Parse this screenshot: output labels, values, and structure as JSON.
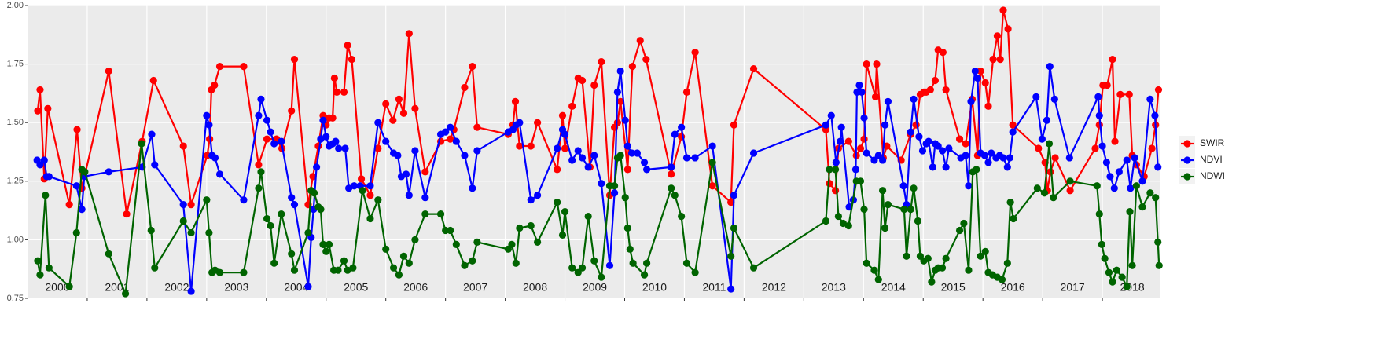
{
  "chart_data": {
    "type": "line",
    "xlim": [
      2000,
      2018.96
    ],
    "xticks": [
      2001,
      2002,
      2003,
      2004,
      2005,
      2006,
      2007,
      2008,
      2009,
      2010,
      2011,
      2012,
      2013,
      2014,
      2015,
      2016,
      2017,
      2018
    ],
    "ylim": [
      0.75,
      2.0
    ],
    "yticks": [
      {
        "value": 0.75,
        "label": "0.75"
      },
      {
        "value": 1.0,
        "label": "1.00"
      },
      {
        "value": 1.25,
        "label": "1.25"
      },
      {
        "value": 1.5,
        "label": "1.50"
      },
      {
        "value": 1.75,
        "label": "1.75"
      },
      {
        "value": 2.0,
        "label": "2.00"
      }
    ],
    "grid": true,
    "legend": "right",
    "year_labels": [
      {
        "text": "2000",
        "x": 2000.5
      },
      {
        "text": "2001",
        "x": 2001.5
      },
      {
        "text": "2002",
        "x": 2002.5
      },
      {
        "text": "2003",
        "x": 2003.5
      },
      {
        "text": "2004",
        "x": 2004.5
      },
      {
        "text": "2005",
        "x": 2005.5
      },
      {
        "text": "2006",
        "x": 2006.5
      },
      {
        "text": "2007",
        "x": 2007.5
      },
      {
        "text": "2008",
        "x": 2008.5
      },
      {
        "text": "2009",
        "x": 2009.5
      },
      {
        "text": "2010",
        "x": 2010.5
      },
      {
        "text": "2011",
        "x": 2011.5
      },
      {
        "text": "2012",
        "x": 2012.5
      },
      {
        "text": "2013",
        "x": 2013.5
      },
      {
        "text": "2014",
        "x": 2014.5
      },
      {
        "text": "2015",
        "x": 2015.5
      },
      {
        "text": "2016",
        "x": 2016.5
      },
      {
        "text": "2017",
        "x": 2017.5
      },
      {
        "text": "2018",
        "x": 2018.5
      }
    ],
    "series": [
      {
        "name": "SWIR",
        "color": "#ff0000",
        "x": [
          2000.17,
          2000.21,
          2000.28,
          2000.34,
          2000.7,
          2000.83,
          2000.91,
          2001.36,
          2001.66,
          2001.92,
          2002.11,
          2002.61,
          2002.74,
          2003.01,
          2003.05,
          2003.08,
          2003.13,
          2003.22,
          2003.62,
          2003.87,
          2004.01,
          2004.17,
          2004.26,
          2004.42,
          2004.47,
          2004.7,
          2004.78,
          2004.87,
          2004.95,
          2005.0,
          2005.05,
          2005.11,
          2005.14,
          2005.18,
          2005.3,
          2005.36,
          2005.43,
          2005.59,
          2005.74,
          2005.87,
          2006.0,
          2006.12,
          2006.22,
          2006.3,
          2006.39,
          2006.49,
          2006.66,
          2006.92,
          2007.08,
          2007.14,
          2007.32,
          2007.45,
          2007.53,
          2008.05,
          2008.13,
          2008.17,
          2008.24,
          2008.43,
          2008.54,
          2008.87,
          2008.96,
          2009.0,
          2009.12,
          2009.22,
          2009.29,
          2009.42,
          2009.49,
          2009.61,
          2009.75,
          2009.83,
          2009.88,
          2009.93,
          2010.05,
          2010.13,
          2010.26,
          2010.36,
          2010.78,
          2010.95,
          2011.04,
          2011.18,
          2011.47,
          2011.78,
          2011.83,
          2012.16,
          2013.37,
          2013.43,
          2013.53,
          2013.58,
          2013.75,
          2013.88,
          2013.95,
          2014.01,
          2014.05,
          2014.2,
          2014.22,
          2014.33,
          2014.39,
          2014.63,
          2014.79,
          2014.88,
          2014.95,
          2015.01,
          2015.05,
          2015.12,
          2015.2,
          2015.25,
          2015.33,
          2015.38,
          2015.61,
          2015.71,
          2015.82,
          2015.91,
          2015.96,
          2016.04,
          2016.09,
          2016.17,
          2016.24,
          2016.29,
          2016.34,
          2016.42,
          2016.5,
          2016.93,
          2017.04,
          2017.08,
          2017.13,
          2017.21,
          2017.46,
          2017.88,
          2017.95,
          2018.01,
          2018.08,
          2018.17,
          2018.21,
          2018.3,
          2018.45,
          2018.5,
          2018.57,
          2018.7,
          2018.83,
          2018.89,
          2018.94
        ],
        "values": [
          1.55,
          1.64,
          1.26,
          1.56,
          1.15,
          1.47,
          1.22,
          1.72,
          1.11,
          1.42,
          1.68,
          1.4,
          1.15,
          1.36,
          1.43,
          1.64,
          1.66,
          1.74,
          1.74,
          1.32,
          1.43,
          1.43,
          1.39,
          1.55,
          1.77,
          1.15,
          1.27,
          1.4,
          1.53,
          1.49,
          1.52,
          1.52,
          1.69,
          1.63,
          1.63,
          1.83,
          1.77,
          1.26,
          1.19,
          1.39,
          1.58,
          1.51,
          1.6,
          1.54,
          1.88,
          1.56,
          1.29,
          1.42,
          1.43,
          1.47,
          1.65,
          1.74,
          1.48,
          1.45,
          1.49,
          1.59,
          1.4,
          1.4,
          1.5,
          1.3,
          1.53,
          1.39,
          1.57,
          1.69,
          1.68,
          1.31,
          1.66,
          1.76,
          1.19,
          1.48,
          1.5,
          1.59,
          1.3,
          1.74,
          1.85,
          1.77,
          1.28,
          1.44,
          1.63,
          1.8,
          1.23,
          1.16,
          1.49,
          1.73,
          1.47,
          1.24,
          1.21,
          1.39,
          1.42,
          1.36,
          1.39,
          1.43,
          1.75,
          1.61,
          1.75,
          1.35,
          1.4,
          1.34,
          1.45,
          1.49,
          1.62,
          1.63,
          1.63,
          1.64,
          1.68,
          1.81,
          1.8,
          1.64,
          1.43,
          1.41,
          1.6,
          1.36,
          1.72,
          1.67,
          1.57,
          1.77,
          1.87,
          1.77,
          1.98,
          1.9,
          1.49,
          1.39,
          1.33,
          1.21,
          1.29,
          1.35,
          1.21,
          1.39,
          1.49,
          1.66,
          1.66,
          1.77,
          1.42,
          1.62,
          1.62,
          1.36,
          1.32,
          1.27,
          1.39,
          1.49,
          1.64
        ]
      },
      {
        "name": "NDVI",
        "color": "#0000ff",
        "x": [
          2000.16,
          2000.21,
          2000.28,
          2000.32,
          2000.36,
          2000.82,
          2000.91,
          2000.95,
          2001.36,
          2001.92,
          2002.08,
          2002.13,
          2002.61,
          2002.74,
          2003.0,
          2003.04,
          2003.09,
          2003.14,
          2003.22,
          2003.62,
          2003.87,
          2003.91,
          2004.01,
          2004.07,
          2004.13,
          2004.25,
          2004.42,
          2004.47,
          2004.7,
          2004.75,
          2004.79,
          2004.84,
          2004.91,
          2004.95,
          2005.0,
          2005.05,
          2005.11,
          2005.16,
          2005.21,
          2005.32,
          2005.38,
          2005.47,
          2005.57,
          2005.74,
          2005.87,
          2006.0,
          2006.13,
          2006.2,
          2006.26,
          2006.34,
          2006.39,
          2006.49,
          2006.66,
          2006.92,
          2007.0,
          2007.08,
          2007.18,
          2007.32,
          2007.45,
          2007.53,
          2008.05,
          2008.13,
          2008.18,
          2008.24,
          2008.43,
          2008.54,
          2008.87,
          2008.96,
          2009.0,
          2009.12,
          2009.22,
          2009.29,
          2009.39,
          2009.49,
          2009.61,
          2009.75,
          2009.83,
          2009.88,
          2009.93,
          2010.01,
          2010.05,
          2010.12,
          2010.21,
          2010.33,
          2010.37,
          2010.78,
          2010.84,
          2010.95,
          2011.04,
          2011.18,
          2011.47,
          2011.78,
          2011.83,
          2012.16,
          2013.37,
          2013.46,
          2013.54,
          2013.61,
          2013.63,
          2013.76,
          2013.83,
          2013.87,
          2013.89,
          2013.93,
          2013.97,
          2014.01,
          2014.05,
          2014.18,
          2014.25,
          2014.32,
          2014.36,
          2014.41,
          2014.67,
          2014.72,
          2014.79,
          2014.84,
          2014.93,
          2014.99,
          2015.05,
          2015.09,
          2015.16,
          2015.2,
          2015.25,
          2015.32,
          2015.38,
          2015.43,
          2015.63,
          2015.71,
          2015.76,
          2015.8,
          2015.87,
          2015.91,
          2015.96,
          2016.03,
          2016.09,
          2016.14,
          2016.22,
          2016.28,
          2016.34,
          2016.41,
          2016.45,
          2016.5,
          2016.89,
          2016.99,
          2017.07,
          2017.12,
          2017.2,
          2017.45,
          2017.93,
          2017.95,
          2018.0,
          2018.07,
          2018.13,
          2018.2,
          2018.28,
          2018.41,
          2018.47,
          2018.54,
          2018.67,
          2018.8,
          2018.88,
          2018.93
        ],
        "values": [
          1.34,
          1.32,
          1.34,
          1.27,
          1.27,
          1.23,
          1.13,
          1.27,
          1.29,
          1.31,
          1.45,
          1.32,
          1.15,
          0.78,
          1.53,
          1.49,
          1.36,
          1.35,
          1.28,
          1.17,
          1.53,
          1.6,
          1.51,
          1.46,
          1.41,
          1.42,
          1.18,
          1.15,
          0.8,
          1.01,
          1.13,
          1.31,
          1.43,
          1.51,
          1.44,
          1.4,
          1.41,
          1.42,
          1.39,
          1.39,
          1.22,
          1.23,
          1.23,
          1.23,
          1.5,
          1.42,
          1.37,
          1.36,
          1.27,
          1.28,
          1.19,
          1.38,
          1.18,
          1.45,
          1.46,
          1.48,
          1.42,
          1.36,
          1.22,
          1.38,
          1.46,
          1.47,
          1.49,
          1.5,
          1.17,
          1.19,
          1.39,
          1.47,
          1.45,
          1.34,
          1.38,
          1.35,
          1.31,
          1.36,
          1.24,
          0.89,
          1.2,
          1.63,
          1.72,
          1.51,
          1.4,
          1.37,
          1.37,
          1.33,
          1.3,
          1.31,
          1.45,
          1.48,
          1.35,
          1.35,
          1.4,
          0.79,
          1.19,
          1.37,
          1.49,
          1.53,
          1.33,
          1.42,
          1.48,
          1.14,
          1.17,
          1.3,
          1.63,
          1.66,
          1.63,
          1.52,
          1.37,
          1.34,
          1.36,
          1.34,
          1.49,
          1.59,
          1.23,
          1.15,
          1.46,
          1.6,
          1.44,
          1.38,
          1.41,
          1.42,
          1.31,
          1.41,
          1.4,
          1.38,
          1.31,
          1.39,
          1.35,
          1.36,
          1.23,
          1.59,
          1.72,
          1.69,
          1.37,
          1.36,
          1.33,
          1.37,
          1.35,
          1.36,
          1.35,
          1.31,
          1.35,
          1.46,
          1.61,
          1.43,
          1.51,
          1.74,
          1.6,
          1.35,
          1.61,
          1.53,
          1.4,
          1.33,
          1.27,
          1.22,
          1.29,
          1.34,
          1.22,
          1.35,
          1.25,
          1.6,
          1.53,
          1.31
        ]
      },
      {
        "name": "NDWI",
        "color": "#006400",
        "x": [
          2000.17,
          2000.21,
          2000.3,
          2000.36,
          2000.7,
          2000.82,
          2000.91,
          2000.96,
          2001.36,
          2001.64,
          2001.91,
          2002.07,
          2002.13,
          2002.61,
          2002.74,
          2003.0,
          2003.04,
          2003.09,
          2003.14,
          2003.22,
          2003.62,
          2003.87,
          2003.91,
          2004.01,
          2004.07,
          2004.13,
          2004.25,
          2004.42,
          2004.47,
          2004.7,
          2004.75,
          2004.8,
          2004.87,
          2004.91,
          2004.95,
          2005.0,
          2005.05,
          2005.13,
          2005.2,
          2005.3,
          2005.36,
          2005.45,
          2005.61,
          2005.74,
          2005.87,
          2006.0,
          2006.13,
          2006.22,
          2006.3,
          2006.39,
          2006.49,
          2006.66,
          2006.92,
          2007.0,
          2007.08,
          2007.18,
          2007.32,
          2007.45,
          2007.53,
          2008.05,
          2008.11,
          2008.18,
          2008.24,
          2008.43,
          2008.54,
          2008.87,
          2008.96,
          2009.0,
          2009.12,
          2009.22,
          2009.29,
          2009.39,
          2009.49,
          2009.61,
          2009.75,
          2009.83,
          2009.88,
          2009.93,
          2010.01,
          2010.05,
          2010.09,
          2010.14,
          2010.33,
          2010.37,
          2010.78,
          2010.84,
          2010.95,
          2011.04,
          2011.18,
          2011.47,
          2011.78,
          2011.83,
          2012.16,
          2013.37,
          2013.43,
          2013.53,
          2013.58,
          2013.66,
          2013.75,
          2013.88,
          2013.95,
          2014.01,
          2014.05,
          2014.18,
          2014.25,
          2014.32,
          2014.36,
          2014.41,
          2014.68,
          2014.72,
          2014.79,
          2014.84,
          2014.91,
          2014.95,
          2015.01,
          2015.08,
          2015.14,
          2015.2,
          2015.25,
          2015.32,
          2015.38,
          2015.61,
          2015.68,
          2015.76,
          2015.83,
          2015.89,
          2015.96,
          2016.04,
          2016.09,
          2016.16,
          2016.24,
          2016.32,
          2016.41,
          2016.46,
          2016.51,
          2016.91,
          2017.03,
          2017.11,
          2017.18,
          2017.46,
          2017.91,
          2017.95,
          2017.99,
          2018.04,
          2018.11,
          2018.17,
          2018.24,
          2018.33,
          2018.41,
          2018.46,
          2018.5,
          2018.57,
          2018.67,
          2018.8,
          2018.89,
          2018.93,
          2018.95
        ],
        "values": [
          0.91,
          0.85,
          1.19,
          0.88,
          0.8,
          1.03,
          1.3,
          1.29,
          0.94,
          0.77,
          1.41,
          1.04,
          0.88,
          1.08,
          1.03,
          1.17,
          1.03,
          0.86,
          0.87,
          0.86,
          0.86,
          1.22,
          1.29,
          1.09,
          1.06,
          0.9,
          1.11,
          0.94,
          0.87,
          1.03,
          1.21,
          1.2,
          1.14,
          1.13,
          0.98,
          0.95,
          0.98,
          0.87,
          0.87,
          0.91,
          0.87,
          0.88,
          1.21,
          1.09,
          1.17,
          0.96,
          0.88,
          0.85,
          0.93,
          0.9,
          1.0,
          1.11,
          1.11,
          1.04,
          1.04,
          0.98,
          0.89,
          0.91,
          0.99,
          0.96,
          0.98,
          0.9,
          1.05,
          1.06,
          0.99,
          1.16,
          1.02,
          1.12,
          0.88,
          0.86,
          0.88,
          1.1,
          0.91,
          0.84,
          1.23,
          1.23,
          1.35,
          1.36,
          1.18,
          1.05,
          0.96,
          0.9,
          0.85,
          0.9,
          1.22,
          1.19,
          1.1,
          0.9,
          0.86,
          1.33,
          0.93,
          1.05,
          0.88,
          1.08,
          1.3,
          1.3,
          1.1,
          1.07,
          1.06,
          1.25,
          1.25,
          1.13,
          0.9,
          0.87,
          0.83,
          1.21,
          1.05,
          1.15,
          1.13,
          0.93,
          1.13,
          1.22,
          1.08,
          0.93,
          0.91,
          0.92,
          0.82,
          0.87,
          0.88,
          0.88,
          0.92,
          1.04,
          1.07,
          0.87,
          1.29,
          1.3,
          0.93,
          0.95,
          0.86,
          0.85,
          0.84,
          0.83,
          0.9,
          1.16,
          1.09,
          1.22,
          1.2,
          1.41,
          1.18,
          1.25,
          1.23,
          1.11,
          0.98,
          0.92,
          0.86,
          0.82,
          0.87,
          0.84,
          0.8,
          1.12,
          0.89,
          1.23,
          1.14,
          1.2,
          1.18,
          0.99,
          0.89
        ]
      }
    ]
  }
}
